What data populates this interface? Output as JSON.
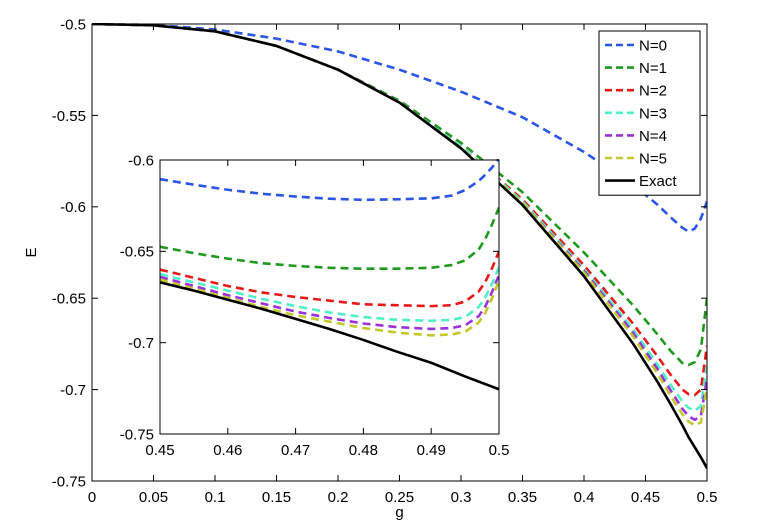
{
  "chart_data": [
    {
      "type": "line",
      "title": "",
      "xlabel": "g",
      "ylabel": "E",
      "xlim": [
        0,
        0.5
      ],
      "ylim": [
        -0.75,
        -0.5
      ],
      "xticks": [
        "0",
        "0.05",
        "0.1",
        "0.15",
        "0.2",
        "0.25",
        "0.3",
        "0.35",
        "0.4",
        "0.45",
        "0.5"
      ],
      "yticks": [
        "-0.5",
        "-0.55",
        "-0.6",
        "-0.65",
        "-0.7",
        "-0.75"
      ],
      "grid": false,
      "legend_position": "top-right",
      "series": [
        {
          "name": "N=0",
          "color": "#2a55e6",
          "dashed": true,
          "x": [
            0,
            0.05,
            0.1,
            0.15,
            0.2,
            0.25,
            0.3,
            0.35,
            0.4,
            0.44,
            0.46,
            0.47,
            0.48,
            0.485,
            0.49,
            0.495,
            0.5
          ],
          "y": [
            -0.5,
            -0.5005,
            -0.503,
            -0.508,
            -0.515,
            -0.525,
            -0.537,
            -0.551,
            -0.57,
            -0.588,
            -0.599,
            -0.6055,
            -0.6115,
            -0.6135,
            -0.612,
            -0.6065,
            -0.597
          ]
        },
        {
          "name": "N=1",
          "color": "#1f9a1f",
          "dashed": true,
          "x": [
            0,
            0.05,
            0.1,
            0.15,
            0.2,
            0.25,
            0.3,
            0.35,
            0.4,
            0.44,
            0.46,
            0.47,
            0.48,
            0.485,
            0.49,
            0.495,
            0.5
          ],
          "y": [
            -0.5,
            -0.5007,
            -0.504,
            -0.512,
            -0.525,
            -0.542,
            -0.565,
            -0.592,
            -0.625,
            -0.654,
            -0.67,
            -0.6785,
            -0.6855,
            -0.6865,
            -0.685,
            -0.678,
            -0.65
          ]
        },
        {
          "name": "N=2",
          "color": "#e81818",
          "dashed": true,
          "x": [
            0,
            0.05,
            0.1,
            0.15,
            0.2,
            0.25,
            0.3,
            0.35,
            0.4,
            0.44,
            0.46,
            0.47,
            0.48,
            0.485,
            0.49,
            0.495,
            0.5
          ],
          "y": [
            -0.5,
            -0.5007,
            -0.504,
            -0.512,
            -0.525,
            -0.543,
            -0.567,
            -0.596,
            -0.632,
            -0.664,
            -0.682,
            -0.6915,
            -0.7,
            -0.7025,
            -0.703,
            -0.7,
            -0.676
          ]
        },
        {
          "name": "N=3",
          "color": "#4ef0c8",
          "dashed": true,
          "x": [
            0,
            0.05,
            0.1,
            0.15,
            0.2,
            0.25,
            0.3,
            0.35,
            0.4,
            0.44,
            0.46,
            0.47,
            0.48,
            0.485,
            0.49,
            0.495,
            0.5
          ],
          "y": [
            -0.5,
            -0.5007,
            -0.504,
            -0.512,
            -0.525,
            -0.543,
            -0.567,
            -0.597,
            -0.634,
            -0.667,
            -0.6865,
            -0.697,
            -0.7065,
            -0.71,
            -0.7115,
            -0.709,
            -0.687
          ]
        },
        {
          "name": "N=4",
          "color": "#9a32d8",
          "dashed": true,
          "x": [
            0,
            0.05,
            0.1,
            0.15,
            0.2,
            0.25,
            0.3,
            0.35,
            0.4,
            0.44,
            0.46,
            0.47,
            0.48,
            0.485,
            0.49,
            0.495,
            0.5
          ],
          "y": [
            -0.5,
            -0.5007,
            -0.504,
            -0.512,
            -0.525,
            -0.543,
            -0.568,
            -0.598,
            -0.635,
            -0.669,
            -0.689,
            -0.7,
            -0.7105,
            -0.7145,
            -0.7165,
            -0.7145,
            -0.694
          ]
        },
        {
          "name": "N=5",
          "color": "#c3c82a",
          "dashed": true,
          "x": [
            0,
            0.05,
            0.1,
            0.15,
            0.2,
            0.25,
            0.3,
            0.35,
            0.4,
            0.44,
            0.46,
            0.47,
            0.48,
            0.485,
            0.49,
            0.495,
            0.5
          ],
          "y": [
            -0.5,
            -0.5007,
            -0.504,
            -0.512,
            -0.525,
            -0.543,
            -0.568,
            -0.598,
            -0.636,
            -0.671,
            -0.6915,
            -0.703,
            -0.7135,
            -0.7175,
            -0.7195,
            -0.718,
            -0.699
          ]
        },
        {
          "name": "Exact",
          "color": "#000000",
          "dashed": false,
          "x": [
            0,
            0.05,
            0.1,
            0.15,
            0.2,
            0.25,
            0.3,
            0.35,
            0.4,
            0.44,
            0.46,
            0.47,
            0.48,
            0.485,
            0.49,
            0.495,
            0.5
          ],
          "y": [
            -0.5,
            -0.5007,
            -0.504,
            -0.512,
            -0.525,
            -0.543,
            -0.568,
            -0.599,
            -0.638,
            -0.675,
            -0.696,
            -0.7075,
            -0.7195,
            -0.726,
            -0.7315,
            -0.737,
            -0.743
          ]
        }
      ]
    },
    {
      "type": "line",
      "title": "",
      "xlabel": "",
      "ylabel": "",
      "xlim": [
        0.45,
        0.5
      ],
      "ylim": [
        -0.75,
        -0.6
      ],
      "xticks": [
        "0.45",
        "0.46",
        "0.47",
        "0.48",
        "0.49",
        "0.5"
      ],
      "yticks": [
        "-0.6",
        "-0.65",
        "-0.7",
        "-0.75"
      ],
      "grid": false,
      "series": [
        {
          "name": "N=0",
          "color": "#2a55e6",
          "dashed": true,
          "x": [
            0.45,
            0.455,
            0.46,
            0.465,
            0.47,
            0.475,
            0.48,
            0.485,
            0.49,
            0.493,
            0.495,
            0.497,
            0.498,
            0.499,
            0.5
          ],
          "y": [
            -0.6105,
            -0.6135,
            -0.6163,
            -0.6185,
            -0.62,
            -0.6212,
            -0.6218,
            -0.6215,
            -0.621,
            -0.6195,
            -0.6165,
            -0.6115,
            -0.608,
            -0.604,
            -0.599
          ]
        },
        {
          "name": "N=1",
          "color": "#1f9a1f",
          "dashed": true,
          "x": [
            0.45,
            0.455,
            0.46,
            0.465,
            0.47,
            0.475,
            0.48,
            0.485,
            0.49,
            0.493,
            0.495,
            0.497,
            0.498,
            0.499,
            0.5
          ],
          "y": [
            -0.6475,
            -0.651,
            -0.654,
            -0.6565,
            -0.658,
            -0.659,
            -0.6595,
            -0.6595,
            -0.659,
            -0.6575,
            -0.655,
            -0.649,
            -0.643,
            -0.635,
            -0.626
          ]
        },
        {
          "name": "N=2",
          "color": "#e81818",
          "dashed": true,
          "x": [
            0.45,
            0.455,
            0.46,
            0.465,
            0.47,
            0.475,
            0.48,
            0.485,
            0.49,
            0.493,
            0.495,
            0.497,
            0.498,
            0.499,
            0.5
          ],
          "y": [
            -0.66,
            -0.6645,
            -0.669,
            -0.6725,
            -0.675,
            -0.677,
            -0.679,
            -0.6795,
            -0.68,
            -0.6795,
            -0.6775,
            -0.672,
            -0.6665,
            -0.659,
            -0.65
          ]
        },
        {
          "name": "N=3",
          "color": "#4ef0c8",
          "dashed": true,
          "x": [
            0.45,
            0.455,
            0.46,
            0.465,
            0.47,
            0.475,
            0.48,
            0.485,
            0.49,
            0.493,
            0.495,
            0.497,
            0.498,
            0.499,
            0.5
          ],
          "y": [
            -0.6625,
            -0.667,
            -0.6715,
            -0.676,
            -0.68,
            -0.6835,
            -0.686,
            -0.6875,
            -0.688,
            -0.6875,
            -0.686,
            -0.6805,
            -0.675,
            -0.6675,
            -0.6585
          ]
        },
        {
          "name": "N=4",
          "color": "#9a32d8",
          "dashed": true,
          "x": [
            0.45,
            0.455,
            0.46,
            0.465,
            0.47,
            0.475,
            0.48,
            0.485,
            0.49,
            0.493,
            0.495,
            0.497,
            0.498,
            0.499,
            0.5
          ],
          "y": [
            -0.664,
            -0.669,
            -0.674,
            -0.6785,
            -0.683,
            -0.6865,
            -0.6895,
            -0.6915,
            -0.6925,
            -0.692,
            -0.6905,
            -0.6855,
            -0.68,
            -0.672,
            -0.663
          ]
        },
        {
          "name": "N=5",
          "color": "#c3c82a",
          "dashed": true,
          "x": [
            0.45,
            0.455,
            0.46,
            0.465,
            0.47,
            0.475,
            0.48,
            0.485,
            0.49,
            0.493,
            0.495,
            0.497,
            0.498,
            0.499,
            0.5
          ],
          "y": [
            -0.6655,
            -0.6705,
            -0.6755,
            -0.6805,
            -0.685,
            -0.6885,
            -0.692,
            -0.6945,
            -0.696,
            -0.6955,
            -0.694,
            -0.689,
            -0.6835,
            -0.6755,
            -0.666
          ]
        },
        {
          "name": "Exact",
          "color": "#000000",
          "dashed": false,
          "x": [
            0.45,
            0.455,
            0.46,
            0.465,
            0.47,
            0.475,
            0.48,
            0.485,
            0.49,
            0.495,
            0.5
          ],
          "y": [
            -0.667,
            -0.6715,
            -0.6765,
            -0.6815,
            -0.687,
            -0.6925,
            -0.6985,
            -0.705,
            -0.711,
            -0.7185,
            -0.7255
          ]
        }
      ]
    }
  ]
}
